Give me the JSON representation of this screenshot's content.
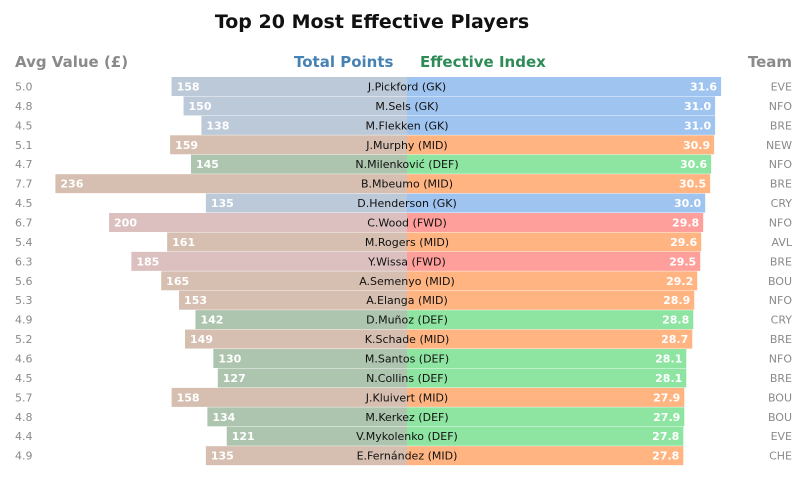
{
  "colors": {
    "GK": {
      "left": "#bcc9d9",
      "right": "#a0c4f0"
    },
    "MID": {
      "left": "#d6bfb0",
      "right": "#ffb482"
    },
    "DEF": {
      "left": "#adc5ae",
      "right": "#8de5a1"
    },
    "FWD": {
      "left": "#dcc0c0",
      "right": "#ff9f9b"
    }
  },
  "chart_data": {
    "type": "bar",
    "title": "Top 20 Most Effective Players",
    "headers": {
      "avg_value": "Avg Value (£)",
      "total_points": "Total Points",
      "effective_index": "Effective Index",
      "team": "Team"
    },
    "left_max": 245,
    "right_max": 33,
    "players": [
      {
        "label": "J.Pickford (GK)",
        "pos": "GK",
        "avg_value": "5.0",
        "total_points": 158,
        "effective_index": 31.6,
        "team": "EVE"
      },
      {
        "label": "M.Sels (GK)",
        "pos": "GK",
        "avg_value": "4.8",
        "total_points": 150,
        "effective_index": 31.0,
        "team": "NFO"
      },
      {
        "label": "M.Flekken (GK)",
        "pos": "GK",
        "avg_value": "4.5",
        "total_points": 138,
        "effective_index": 31.0,
        "team": "BRE"
      },
      {
        "label": "J.Murphy (MID)",
        "pos": "MID",
        "avg_value": "5.1",
        "total_points": 159,
        "effective_index": 30.9,
        "team": "NEW"
      },
      {
        "label": "N.Milenković (DEF)",
        "pos": "DEF",
        "avg_value": "4.7",
        "total_points": 145,
        "effective_index": 30.6,
        "team": "NFO"
      },
      {
        "label": "B.Mbeumo (MID)",
        "pos": "MID",
        "avg_value": "7.7",
        "total_points": 236,
        "effective_index": 30.5,
        "team": "BRE"
      },
      {
        "label": "D.Henderson (GK)",
        "pos": "GK",
        "avg_value": "4.5",
        "total_points": 135,
        "effective_index": 30.0,
        "team": "CRY"
      },
      {
        "label": "C.Wood (FWD)",
        "pos": "FWD",
        "avg_value": "6.7",
        "total_points": 200,
        "effective_index": 29.8,
        "team": "NFO"
      },
      {
        "label": "M.Rogers (MID)",
        "pos": "MID",
        "avg_value": "5.4",
        "total_points": 161,
        "effective_index": 29.6,
        "team": "AVL"
      },
      {
        "label": "Y.Wissa (FWD)",
        "pos": "FWD",
        "avg_value": "6.3",
        "total_points": 185,
        "effective_index": 29.5,
        "team": "BRE"
      },
      {
        "label": "A.Semenyo (MID)",
        "pos": "MID",
        "avg_value": "5.6",
        "total_points": 165,
        "effective_index": 29.2,
        "team": "BOU"
      },
      {
        "label": "A.Elanga (MID)",
        "pos": "MID",
        "avg_value": "5.3",
        "total_points": 153,
        "effective_index": 28.9,
        "team": "NFO"
      },
      {
        "label": "D.Muñoz (DEF)",
        "pos": "DEF",
        "avg_value": "4.9",
        "total_points": 142,
        "effective_index": 28.8,
        "team": "CRY"
      },
      {
        "label": "K.Schade (MID)",
        "pos": "MID",
        "avg_value": "5.2",
        "total_points": 149,
        "effective_index": 28.7,
        "team": "BRE"
      },
      {
        "label": "M.Santos (DEF)",
        "pos": "DEF",
        "avg_value": "4.6",
        "total_points": 130,
        "effective_index": 28.1,
        "team": "NFO"
      },
      {
        "label": "N.Collins (DEF)",
        "pos": "DEF",
        "avg_value": "4.5",
        "total_points": 127,
        "effective_index": 28.1,
        "team": "BRE"
      },
      {
        "label": "J.Kluivert (MID)",
        "pos": "MID",
        "avg_value": "5.7",
        "total_points": 158,
        "effective_index": 27.9,
        "team": "BOU"
      },
      {
        "label": "M.Kerkez (DEF)",
        "pos": "DEF",
        "avg_value": "4.8",
        "total_points": 134,
        "effective_index": 27.9,
        "team": "BOU"
      },
      {
        "label": "V.Mykolenko (DEF)",
        "pos": "DEF",
        "avg_value": "4.4",
        "total_points": 121,
        "effective_index": 27.8,
        "team": "EVE"
      },
      {
        "label": "E.Fernández (MID)",
        "pos": "MID",
        "avg_value": "4.9",
        "total_points": 135,
        "effective_index": 27.8,
        "team": "CHE"
      }
    ]
  }
}
